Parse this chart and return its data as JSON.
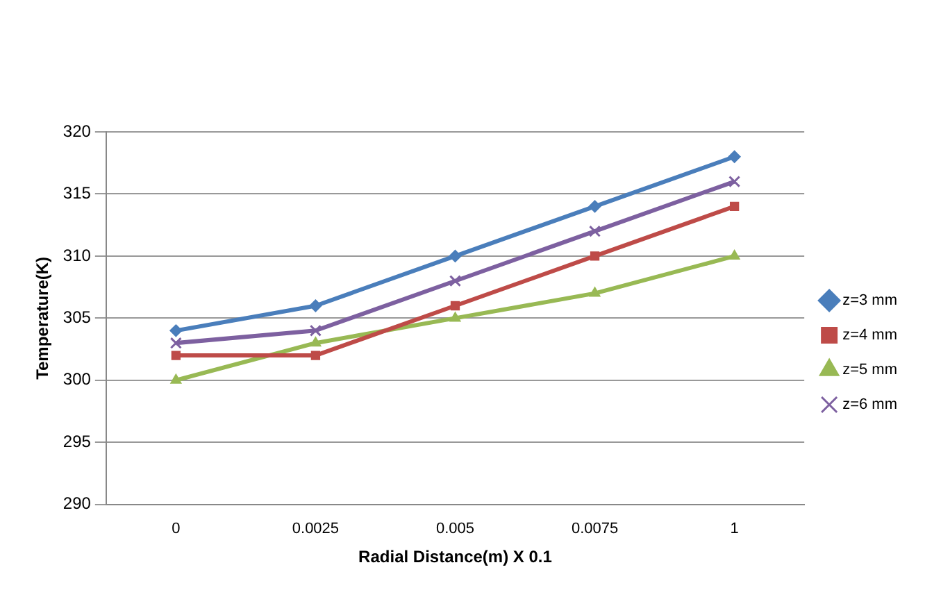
{
  "chart_data": {
    "type": "line",
    "xlabel": "Radial Distance(m) X 0.1",
    "ylabel": "Temperature(K)",
    "categories": [
      "0",
      "0.0025",
      "0.005",
      "0.0075",
      "1"
    ],
    "series": [
      {
        "name": "z=3 mm",
        "color": "#4a7ebb",
        "marker": "diamond",
        "values": [
          304,
          306,
          310,
          314,
          318
        ]
      },
      {
        "name": "z=4 mm",
        "color": "#be4b48",
        "marker": "square",
        "values": [
          302,
          302,
          306,
          310,
          314
        ]
      },
      {
        "name": "z=5 mm",
        "color": "#98b954",
        "marker": "triangle",
        "values": [
          300,
          303,
          305,
          307,
          310
        ]
      },
      {
        "name": "z=6 mm",
        "color": "#7d60a0",
        "marker": "cross",
        "values": [
          303,
          304,
          308,
          312,
          316
        ]
      }
    ],
    "ylim": [
      290,
      320
    ],
    "yticks": [
      290,
      295,
      300,
      305,
      310,
      315,
      320
    ],
    "grid": "y",
    "legend": "right",
    "line_style": "solid"
  }
}
